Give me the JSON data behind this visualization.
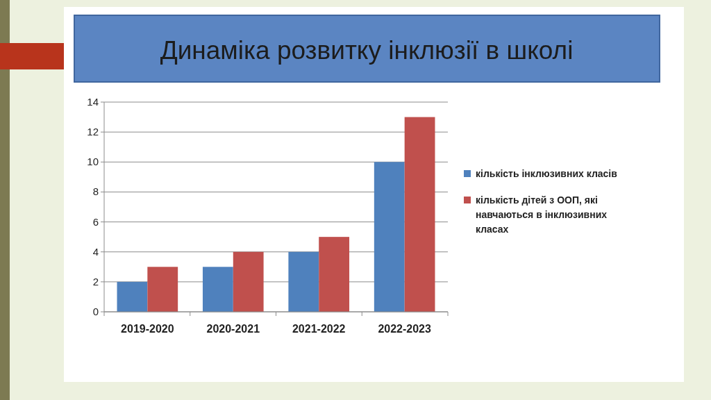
{
  "chart_data": {
    "type": "bar",
    "title": "Динаміка розвитку інклюзії в школі",
    "categories": [
      "2019-2020",
      "2020-2021",
      "2021-2022",
      "2022-2023"
    ],
    "series": [
      {
        "name": "кількість інклюзивних класів",
        "color": "#4f81bd",
        "values": [
          2,
          3,
          4,
          10
        ]
      },
      {
        "name": "кількість дітей з ООП, які навчаються в інклюзивних класах",
        "color": "#c0504d",
        "values": [
          3,
          4,
          5,
          13
        ]
      }
    ],
    "ylim": [
      0,
      14
    ],
    "yticks": [
      0,
      2,
      4,
      6,
      8,
      10,
      12,
      14
    ],
    "grid": "y",
    "legend": "right"
  }
}
